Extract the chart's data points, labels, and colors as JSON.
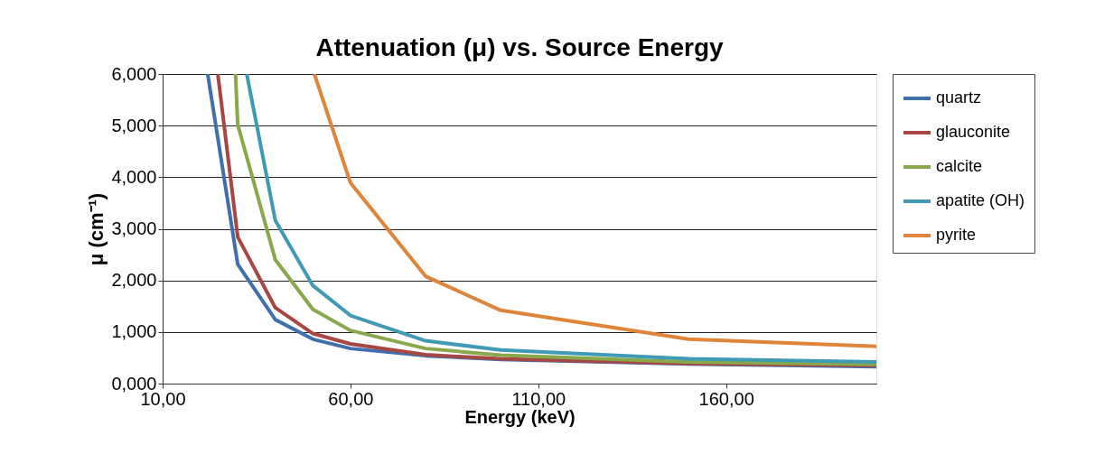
{
  "chart_data": {
    "type": "line",
    "title": "Attenuation (μ) vs. Source Energy",
    "xlabel": "Energy (keV)",
    "ylabel": "μ (cm⁻¹)",
    "xlim": [
      10,
      200
    ],
    "xticks": [
      {
        "value": 10,
        "label": "10,00"
      },
      {
        "value": 60,
        "label": "60,00"
      },
      {
        "value": 110,
        "label": "110,00"
      },
      {
        "value": 160,
        "label": "160,00"
      }
    ],
    "ylim": [
      0,
      6
    ],
    "yticks": [
      {
        "value": 0,
        "label": "0,000"
      },
      {
        "value": 1,
        "label": "1,000"
      },
      {
        "value": 2,
        "label": "2,000"
      },
      {
        "value": 3,
        "label": "3,000"
      },
      {
        "value": 4,
        "label": "4,000"
      },
      {
        "value": 5,
        "label": "5,000"
      },
      {
        "value": 6,
        "label": "6,000"
      }
    ],
    "grid": "y",
    "legend": "right",
    "marker": "none",
    "line_style": "solid",
    "series": [
      {
        "name": "quartz",
        "color": "#3f6fae",
        "x": [
          22.0,
          30,
          40,
          50,
          60,
          80,
          100,
          150,
          200
        ],
        "values": [
          6,
          2.31,
          1.24,
          0.86,
          0.68,
          0.54,
          0.47,
          0.38,
          0.33
        ]
      },
      {
        "name": "glauconite",
        "color": "#a84644",
        "x": [
          24.7,
          30,
          40,
          50,
          60,
          80,
          100,
          150,
          200
        ],
        "values": [
          6,
          2.84,
          1.47,
          0.97,
          0.77,
          0.56,
          0.48,
          0.39,
          0.35
        ]
      },
      {
        "name": "calcite",
        "color": "#88a84b",
        "x": [
          29.4,
          30,
          40,
          50,
          60,
          80,
          100,
          150,
          200
        ],
        "values": [
          6,
          5.02,
          2.4,
          1.44,
          1.03,
          0.68,
          0.55,
          0.42,
          0.37
        ]
      },
      {
        "name": "apatite (OH)",
        "color": "#3f9bb3",
        "x": [
          32.4,
          40,
          50,
          60,
          80,
          100,
          150,
          200
        ],
        "values": [
          6,
          3.16,
          1.9,
          1.32,
          0.83,
          0.65,
          0.48,
          0.42
        ]
      },
      {
        "name": "pyrite",
        "color": "#e0843a",
        "x": [
          50.4,
          60,
          80,
          100,
          150,
          200
        ],
        "values": [
          6,
          3.89,
          2.08,
          1.42,
          0.86,
          0.72
        ]
      }
    ]
  }
}
